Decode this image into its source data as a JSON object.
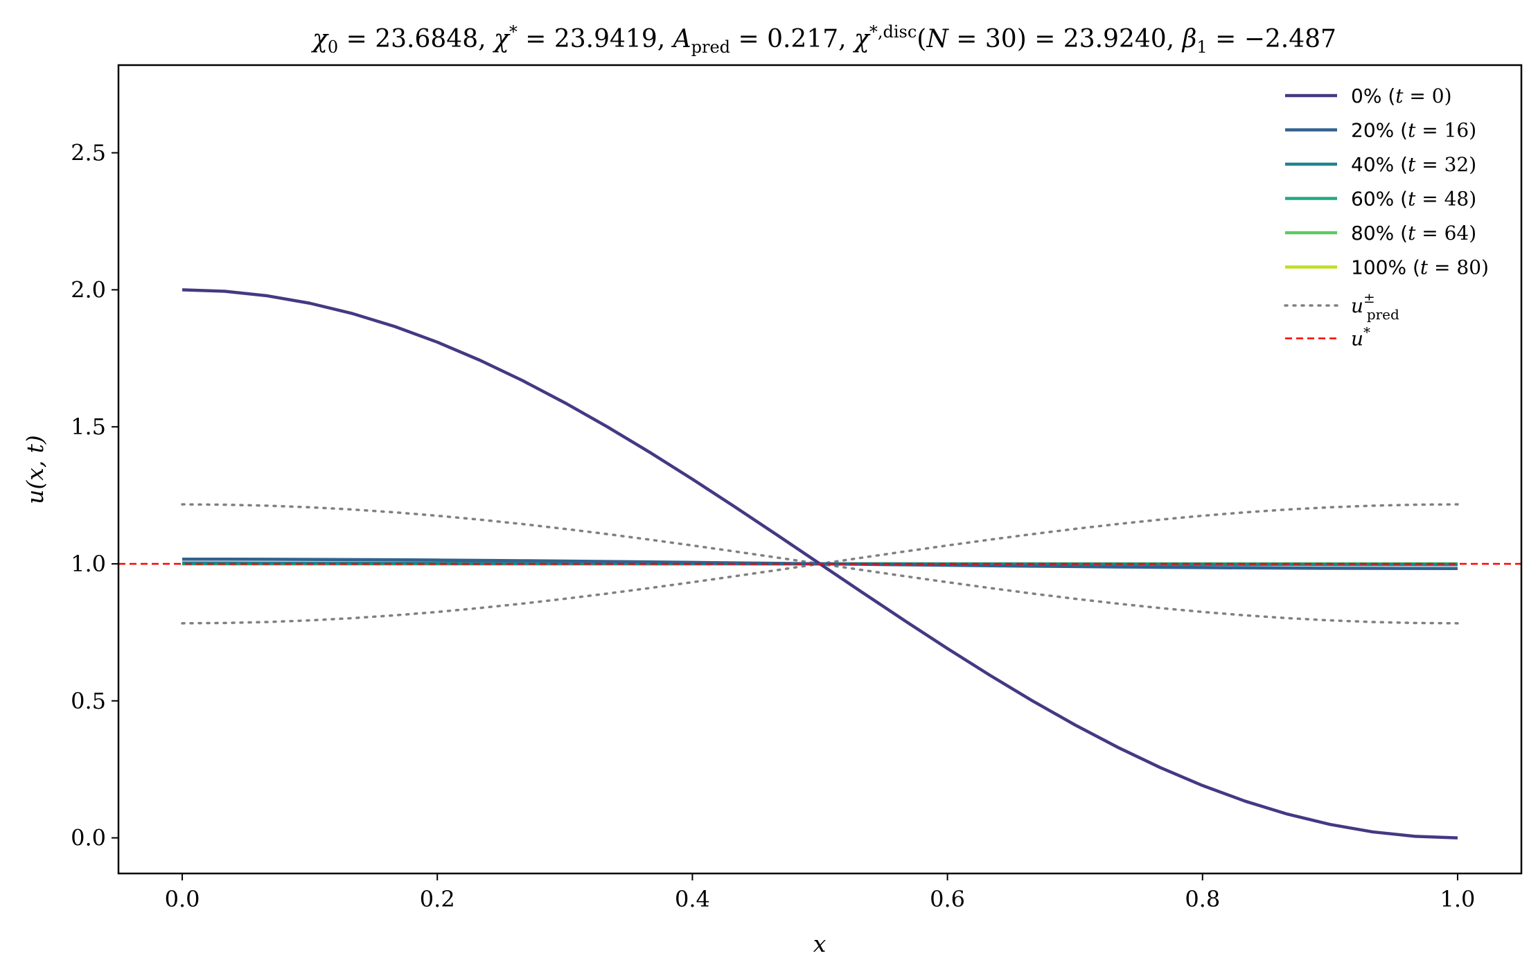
{
  "chart_data": {
    "type": "line",
    "title": "χ₀ = 23.6848,  χ* = 23.9419,  A_pred = 0.217,  χ*,disc(N = 30) = 23.9240,  β₁ = −2.487",
    "xlabel": "x",
    "ylabel": "u(x, t)",
    "xlim": [
      -0.05,
      1.05
    ],
    "ylim": [
      -0.13,
      2.82
    ],
    "x_ticks": [
      "0.0",
      "0.2",
      "0.4",
      "0.6",
      "0.8",
      "1.0"
    ],
    "y_ticks": [
      "0.0",
      "0.5",
      "1.0",
      "1.5",
      "2.0",
      "2.5"
    ],
    "grid": false,
    "legend_position": "top-right",
    "series": [
      {
        "name": "0% (t = 0)",
        "color": "#433983",
        "style": "solid",
        "amplitude": 1.0
      },
      {
        "name": "20% (t = 16)",
        "color": "#31628e",
        "style": "solid",
        "amplitude": 0.017
      },
      {
        "name": "40% (t = 32)",
        "color": "#22828e",
        "style": "solid",
        "amplitude": 0.003
      },
      {
        "name": "60% (t = 48)",
        "color": "#22a884",
        "style": "solid",
        "amplitude": 0.001
      },
      {
        "name": "80% (t = 64)",
        "color": "#5ec962",
        "style": "solid",
        "amplitude": 0.0
      },
      {
        "name": "100% (t = 80)",
        "color": "#bddf26",
        "style": "solid",
        "amplitude": 0.0
      },
      {
        "name": "u±pred",
        "color": "#808080",
        "style": "dotted",
        "amplitude": 0.217
      },
      {
        "name": "u*",
        "color": "#ff0000",
        "style": "dashed",
        "value": 1.0
      }
    ],
    "x_points": 31,
    "profile": "u = 1 + A·cos(πx)"
  }
}
